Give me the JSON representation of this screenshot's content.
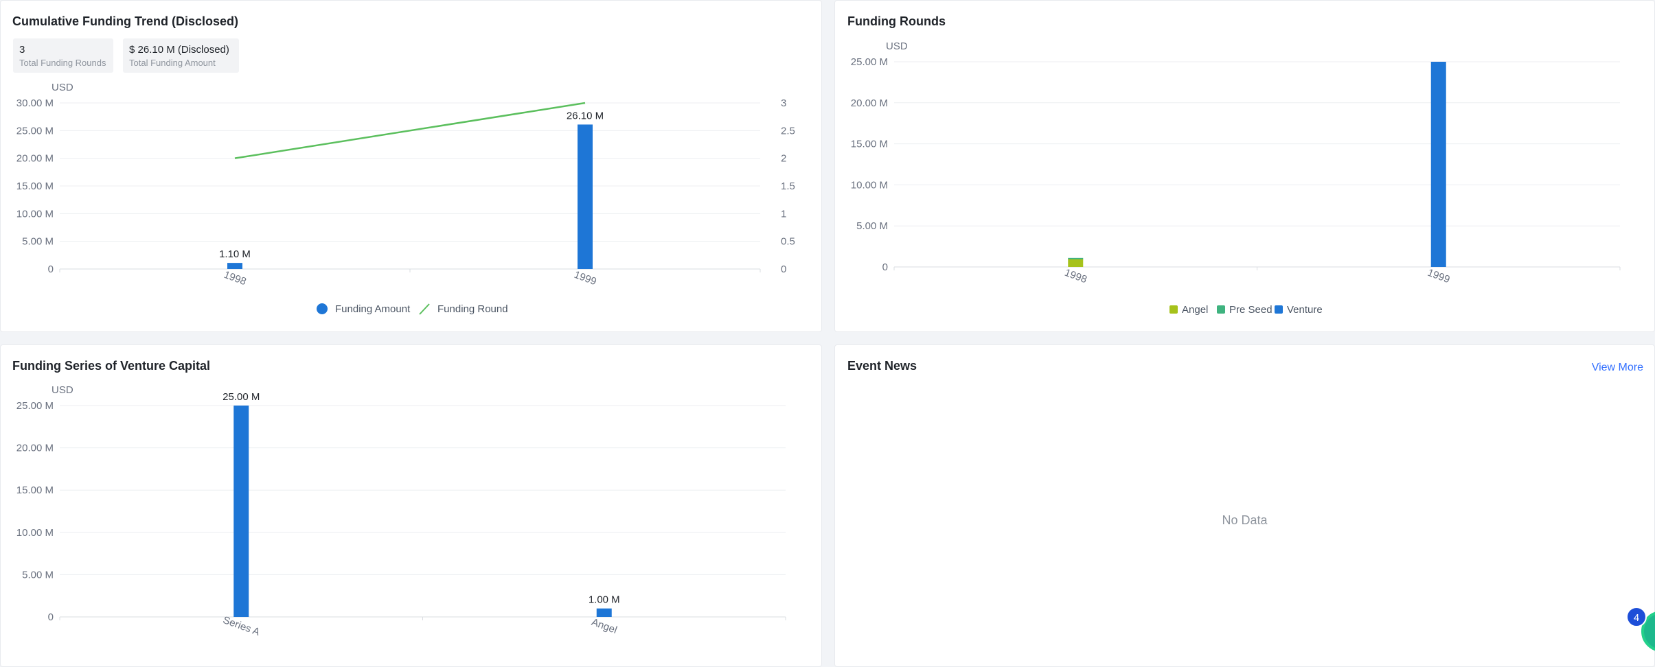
{
  "colors": {
    "blue": "#1e76d6",
    "green": "#5bbf5d",
    "angel": "#a6c21b",
    "preseed": "#3fb37f",
    "venture": "#1e76d6"
  },
  "trend": {
    "title": "Cumulative Funding Trend (Disclosed)",
    "stats": [
      {
        "value": "3",
        "label": "Total Funding Rounds"
      },
      {
        "value": "$ 26.10 M (Disclosed)",
        "label": "Total Funding Amount"
      }
    ]
  },
  "rounds": {
    "title": "Funding Rounds"
  },
  "series_card": {
    "title": "Funding Series of Venture Capital"
  },
  "news": {
    "title": "Event News",
    "view_more": "View More",
    "empty": "No Data"
  },
  "badge": {
    "count": "4"
  },
  "chart_data": [
    {
      "type": "bar",
      "unit": "USD",
      "categories": [
        "1998",
        "1999"
      ],
      "y_ticks": [
        "0",
        "5.00 M",
        "10.00 M",
        "15.00 M",
        "20.00 M",
        "25.00 M",
        "30.00 M"
      ],
      "ylim": [
        0,
        30
      ],
      "y2_ticks": [
        "0",
        "0.5",
        "1",
        "1.5",
        "2",
        "2.5",
        "3"
      ],
      "y2lim": [
        0,
        3
      ],
      "series": [
        {
          "name": "Funding Amount",
          "type": "bar",
          "values": [
            1.1,
            26.1
          ],
          "labels": [
            "1.10 M",
            "26.10 M"
          ]
        },
        {
          "name": "Funding Round",
          "type": "line",
          "values": [
            2,
            3
          ]
        }
      ],
      "legend": "bottom"
    },
    {
      "type": "bar",
      "stacked": true,
      "unit": "USD",
      "categories": [
        "1998",
        "1999"
      ],
      "y_ticks": [
        "0",
        "5.00 M",
        "10.00 M",
        "15.00 M",
        "20.00 M",
        "25.00 M"
      ],
      "ylim": [
        0,
        25
      ],
      "series": [
        {
          "name": "Angel",
          "values": [
            1.0,
            0
          ]
        },
        {
          "name": "Pre Seed",
          "values": [
            0.1,
            0
          ]
        },
        {
          "name": "Venture",
          "values": [
            0,
            25
          ]
        }
      ],
      "legend": "bottom"
    },
    {
      "type": "bar",
      "unit": "USD",
      "categories": [
        "Series A",
        "Angel"
      ],
      "y_ticks": [
        "0",
        "5.00 M",
        "10.00 M",
        "15.00 M",
        "20.00 M",
        "25.00 M"
      ],
      "ylim": [
        0,
        25
      ],
      "values": [
        25,
        1.0
      ],
      "labels": [
        "25.00 M",
        "1.00 M"
      ]
    }
  ]
}
